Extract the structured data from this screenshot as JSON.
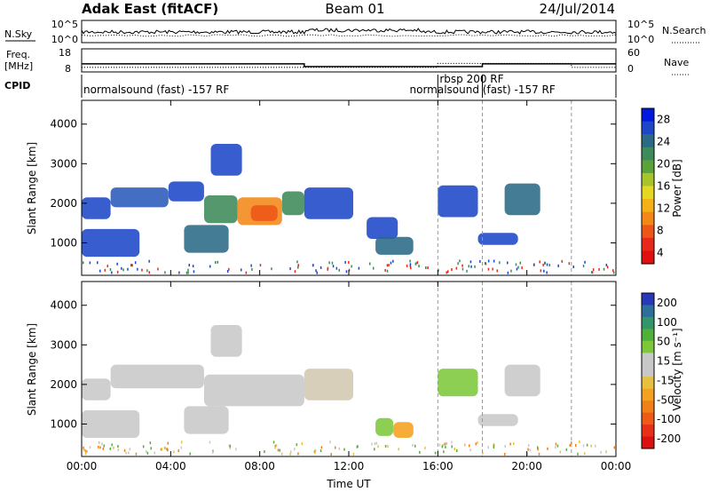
{
  "header": {
    "station": "Adak East (fitACF)",
    "beam": "Beam 01",
    "date": "24/Jul/2014"
  },
  "strip_labels": {
    "nsky": "N.Sky",
    "freq_line1": "Freq.",
    "freq_line2": "[MHz]",
    "cpid": "CPID",
    "nsearch": "N.Search",
    "nave": "Nave",
    "noise_ticks_left": [
      "10^5",
      "10^0"
    ],
    "noise_ticks_right": [
      "10^5",
      "10^0"
    ],
    "freq_ticks": [
      "18",
      "8"
    ],
    "nave_ticks": [
      "60",
      "0"
    ]
  },
  "cpid_labels": [
    {
      "text": "normalsound (fast) -157 RF",
      "start_h": 0.0
    },
    {
      "text": "rbsp 200 RF",
      "start_h": 16.0
    },
    {
      "text": "normalsound (fast) -157 RF",
      "start_h": 18.0
    }
  ],
  "colorbars": {
    "power": {
      "label": "Power [dB]",
      "ticks": [
        "28",
        "24",
        "20",
        "16",
        "12",
        "8",
        "4"
      ],
      "colors": [
        "#0018e0",
        "#1d47c8",
        "#2a6a86",
        "#3f8a5a",
        "#5aa23a",
        "#a8c42a",
        "#e6d820",
        "#f5b018",
        "#f38818",
        "#ee5518",
        "#e82818",
        "#e01010"
      ]
    },
    "velocity": {
      "label": "Velocity [m s⁻¹]",
      "ticks": [
        "200",
        "100",
        "50",
        "15",
        "-15",
        "-50",
        "-100",
        "-200"
      ],
      "colors": [
        "#2838b8",
        "#2c6f9a",
        "#33966a",
        "#4fb03a",
        "#7cc83a",
        "#c8c8c8",
        "#c8c8c8",
        "#e8c040",
        "#f5a020",
        "#f08018",
        "#ee5a18",
        "#e83018",
        "#dd1010"
      ]
    }
  },
  "chart_data": [
    {
      "type": "heatmap",
      "name": "power",
      "xlabel": "",
      "ylabel": "Slant Range [km]",
      "xlim": [
        0,
        24
      ],
      "ylim": [
        180,
        4600
      ],
      "yticks": [
        "1000",
        "2000",
        "3000",
        "4000"
      ],
      "regions": [
        {
          "x0": 0.0,
          "x1": 1.3,
          "y0": 1600,
          "y1": 2150,
          "color": "#1d47c8"
        },
        {
          "x0": 1.3,
          "x1": 3.9,
          "y0": 1900,
          "y1": 2400,
          "color": "#2a5ab8"
        },
        {
          "x0": 3.9,
          "x1": 5.5,
          "y0": 2050,
          "y1": 2550,
          "color": "#1d47c8"
        },
        {
          "x0": 5.5,
          "x1": 7.0,
          "y0": 1500,
          "y1": 2200,
          "color": "#3f8a5a"
        },
        {
          "x0": 7.0,
          "x1": 9.0,
          "y0": 1450,
          "y1": 2150,
          "color": "#f38818"
        },
        {
          "x0": 7.6,
          "x1": 8.8,
          "y0": 1550,
          "y1": 1950,
          "color": "#ee5518"
        },
        {
          "x0": 9.0,
          "x1": 10.0,
          "y0": 1700,
          "y1": 2300,
          "color": "#3f8a5a"
        },
        {
          "x0": 10.0,
          "x1": 12.2,
          "y0": 1600,
          "y1": 2400,
          "color": "#1d47c8"
        },
        {
          "x0": 0.0,
          "x1": 2.6,
          "y0": 650,
          "y1": 1350,
          "color": "#1d47c8"
        },
        {
          "x0": 4.6,
          "x1": 6.6,
          "y0": 750,
          "y1": 1450,
          "color": "#2a6a86"
        },
        {
          "x0": 5.8,
          "x1": 7.2,
          "y0": 2700,
          "y1": 3500,
          "color": "#1d47c8"
        },
        {
          "x0": 12.8,
          "x1": 14.2,
          "y0": 1100,
          "y1": 1650,
          "color": "#1d47c8"
        },
        {
          "x0": 13.2,
          "x1": 14.9,
          "y0": 700,
          "y1": 1150,
          "color": "#2a6a86"
        },
        {
          "x0": 16.0,
          "x1": 17.8,
          "y0": 1650,
          "y1": 2450,
          "color": "#1d47c8"
        },
        {
          "x0": 17.8,
          "x1": 19.6,
          "y0": 950,
          "y1": 1250,
          "color": "#1d47c8"
        },
        {
          "x0": 19.0,
          "x1": 20.6,
          "y0": 1700,
          "y1": 2500,
          "color": "#2a6a86"
        }
      ]
    },
    {
      "type": "heatmap",
      "name": "velocity",
      "xlabel": "Time UT",
      "ylabel": "Slant Range [km]",
      "xlim": [
        0,
        24
      ],
      "ylim": [
        180,
        4600
      ],
      "xticks": [
        "00:00",
        "04:00",
        "08:00",
        "12:00",
        "16:00",
        "20:00",
        "00:00"
      ],
      "yticks": [
        "1000",
        "2000",
        "3000",
        "4000"
      ],
      "regions": [
        {
          "x0": 0.0,
          "x1": 1.3,
          "y0": 1600,
          "y1": 2150,
          "color": "#c8c8c8"
        },
        {
          "x0": 1.3,
          "x1": 5.5,
          "y0": 1900,
          "y1": 2500,
          "color": "#c8c8c8"
        },
        {
          "x0": 5.5,
          "x1": 10.0,
          "y0": 1450,
          "y1": 2250,
          "color": "#c8c8c8"
        },
        {
          "x0": 10.0,
          "x1": 12.2,
          "y0": 1600,
          "y1": 2400,
          "color": "#d2c8b0"
        },
        {
          "x0": 0.0,
          "x1": 2.6,
          "y0": 650,
          "y1": 1350,
          "color": "#c8c8c8"
        },
        {
          "x0": 4.6,
          "x1": 6.6,
          "y0": 750,
          "y1": 1450,
          "color": "#c8c8c8"
        },
        {
          "x0": 5.8,
          "x1": 7.2,
          "y0": 2700,
          "y1": 3500,
          "color": "#c8c8c8"
        },
        {
          "x0": 13.2,
          "x1": 14.0,
          "y0": 700,
          "y1": 1150,
          "color": "#7cc83a"
        },
        {
          "x0": 14.0,
          "x1": 14.9,
          "y0": 650,
          "y1": 1050,
          "color": "#f5a020"
        },
        {
          "x0": 16.0,
          "x1": 17.8,
          "y0": 1700,
          "y1": 2400,
          "color": "#7cc83a"
        },
        {
          "x0": 17.8,
          "x1": 19.6,
          "y0": 950,
          "y1": 1250,
          "color": "#c8c8c8"
        },
        {
          "x0": 19.0,
          "x1": 20.6,
          "y0": 1700,
          "y1": 2500,
          "color": "#c8c8c8"
        }
      ]
    }
  ],
  "frequency_steps": [
    {
      "start_h": 0.0,
      "end_h": 10.0,
      "freq_mhz": 11.5
    },
    {
      "start_h": 10.0,
      "end_h": 18.0,
      "freq_mhz": 10.3
    },
    {
      "start_h": 18.0,
      "end_h": 24.0,
      "freq_mhz": 11.5
    }
  ],
  "nave_steps": [
    {
      "start_h": 0.0,
      "end_h": 16.0,
      "nave": 12
    },
    {
      "start_h": 16.0,
      "end_h": 22.0,
      "nave": 22
    },
    {
      "start_h": 22.0,
      "end_h": 24.0,
      "nave": 12
    }
  ]
}
